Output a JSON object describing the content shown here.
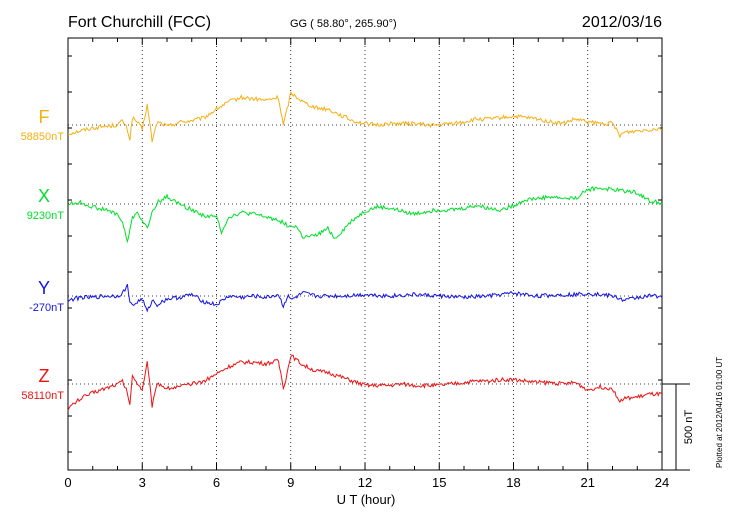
{
  "header": {
    "station": "Fort Churchill (FCC)",
    "coords": "GG ( 58.80°, 265.90°)",
    "date": "2012/03/16"
  },
  "plotted_note": "Plotted at 2012/04/16 01:00 UT",
  "scale_bar": {
    "value_nT": 500,
    "label": "500 nT"
  },
  "chart_data": {
    "type": "line",
    "title": "Fort Churchill (FCC)",
    "xlabel": "U T (hour)",
    "ylabel": "",
    "xlim": [
      0,
      24
    ],
    "xticks": [
      "0",
      "3",
      "6",
      "9",
      "12",
      "15",
      "18",
      "21",
      "24"
    ],
    "grid": true,
    "scale_note": "each trace drawn with a common vertical scale; 500 nT bar at right",
    "series": [
      {
        "name": "F",
        "baseline_label": "58850nT",
        "baseline_nT": 58850,
        "color": "#f5b014",
        "x": [
          0,
          0.5,
          1,
          1.5,
          2,
          2.2,
          2.4,
          2.5,
          2.6,
          2.8,
          3,
          3.2,
          3.4,
          3.5,
          3.6,
          3.8,
          4,
          4.5,
          5,
          5.5,
          6,
          6.5,
          7,
          7.5,
          8,
          8.5,
          8.7,
          8.8,
          9,
          9.2,
          9.5,
          10,
          10.5,
          11,
          11.5,
          12,
          12.5,
          13,
          13.5,
          14,
          14.5,
          15,
          15.5,
          16,
          16.5,
          17,
          17.5,
          18,
          18.5,
          19,
          19.5,
          20,
          20.5,
          21,
          21.5,
          22,
          22.3,
          22.5,
          23,
          23.5,
          24
        ],
        "y": [
          58790,
          58810,
          58830,
          58840,
          58850,
          58880,
          58820,
          58750,
          58900,
          58870,
          58820,
          58990,
          58740,
          58800,
          58870,
          58860,
          58840,
          58870,
          58880,
          58900,
          58960,
          59010,
          59040,
          59030,
          59020,
          59040,
          58850,
          58920,
          59070,
          59050,
          59010,
          58970,
          58960,
          58920,
          58880,
          58860,
          58850,
          58860,
          58860,
          58860,
          58850,
          58850,
          58860,
          58870,
          58890,
          58890,
          58900,
          58910,
          58900,
          58890,
          58870,
          58860,
          58890,
          58870,
          58860,
          58860,
          58780,
          58800,
          58810,
          58820,
          58830
        ]
      },
      {
        "name": "X",
        "baseline_label": "9230nT",
        "baseline_nT": 9230,
        "color": "#00e02a",
        "x": [
          0,
          0.5,
          1,
          1.5,
          2,
          2.2,
          2.4,
          2.5,
          2.6,
          2.8,
          3,
          3.2,
          3.4,
          3.6,
          4,
          4.5,
          5,
          5.5,
          6,
          6.2,
          6.5,
          7,
          7.5,
          8,
          8.5,
          9,
          9.2,
          9.5,
          10,
          10.5,
          10.8,
          11,
          11.5,
          12,
          12.5,
          13,
          13.5,
          14,
          14.5,
          15,
          15.5,
          16,
          16.5,
          17,
          17.5,
          18,
          18.5,
          19,
          19.5,
          20,
          20.5,
          21,
          21.5,
          22,
          22.5,
          23,
          23.5,
          24
        ],
        "y": [
          9230,
          9240,
          9210,
          9190,
          9160,
          9100,
          8970,
          9050,
          9130,
          9180,
          9110,
          9060,
          9170,
          9240,
          9280,
          9230,
          9190,
          9150,
          9140,
          9040,
          9140,
          9170,
          9160,
          9140,
          9120,
          9070,
          9080,
          9000,
          9010,
          9060,
          8990,
          9030,
          9120,
          9180,
          9210,
          9200,
          9180,
          9160,
          9180,
          9190,
          9190,
          9200,
          9220,
          9200,
          9190,
          9220,
          9260,
          9270,
          9280,
          9270,
          9270,
          9330,
          9340,
          9330,
          9320,
          9310,
          9250,
          9240
        ]
      },
      {
        "name": "Y",
        "baseline_label": "-270nT",
        "baseline_nT": -270,
        "color": "#1414e6",
        "x": [
          0,
          0.5,
          1,
          1.5,
          2,
          2.2,
          2.4,
          2.5,
          2.6,
          2.8,
          3,
          3.2,
          3.4,
          3.6,
          4,
          4.5,
          5,
          5.5,
          6,
          6.5,
          7,
          7.5,
          8,
          8.5,
          8.7,
          8.9,
          9,
          9.5,
          10,
          11,
          12,
          13,
          14,
          15,
          16,
          17,
          18,
          19,
          20,
          20.5,
          21,
          21.5,
          22,
          22.5,
          23,
          23.5,
          24
        ],
        "y": [
          -300,
          -280,
          -280,
          -270,
          -270,
          -250,
          -200,
          -300,
          -340,
          -310,
          -290,
          -380,
          -300,
          -330,
          -290,
          -280,
          -260,
          -310,
          -330,
          -270,
          -280,
          -270,
          -280,
          -260,
          -340,
          -260,
          -300,
          -250,
          -270,
          -270,
          -260,
          -270,
          -260,
          -270,
          -280,
          -270,
          -250,
          -270,
          -260,
          -260,
          -250,
          -260,
          -270,
          -300,
          -280,
          -270,
          -270
        ]
      },
      {
        "name": "Z",
        "baseline_label": "58110nT",
        "baseline_nT": 58110,
        "color": "#ee1111",
        "x": [
          0,
          0.5,
          1,
          1.5,
          2,
          2.2,
          2.4,
          2.5,
          2.6,
          2.8,
          3,
          3.2,
          3.4,
          3.5,
          3.6,
          3.8,
          4,
          4.5,
          5,
          5.5,
          6,
          6.5,
          7,
          7.5,
          8,
          8.5,
          8.7,
          8.8,
          9,
          9.2,
          9.5,
          10,
          10.5,
          11,
          11.5,
          12,
          12.5,
          13,
          13.5,
          14,
          14.5,
          15,
          15.5,
          16,
          16.5,
          17,
          17.5,
          18,
          18.5,
          19,
          19.5,
          20,
          20.5,
          21,
          21.5,
          22,
          22.3,
          22.5,
          23,
          23.5,
          24
        ],
        "y": [
          57940,
          58010,
          58050,
          58080,
          58110,
          58130,
          58050,
          57970,
          58160,
          58120,
          58070,
          58260,
          57960,
          58030,
          58120,
          58100,
          58080,
          58090,
          58110,
          58130,
          58180,
          58230,
          58260,
          58260,
          58250,
          58270,
          58090,
          58140,
          58310,
          58280,
          58240,
          58200,
          58190,
          58160,
          58130,
          58100,
          58100,
          58100,
          58110,
          58100,
          58100,
          58100,
          58110,
          58120,
          58130,
          58130,
          58140,
          58140,
          58130,
          58120,
          58120,
          58110,
          58120,
          58070,
          58090,
          58080,
          57990,
          58010,
          58020,
          58040,
          58040
        ]
      }
    ]
  }
}
